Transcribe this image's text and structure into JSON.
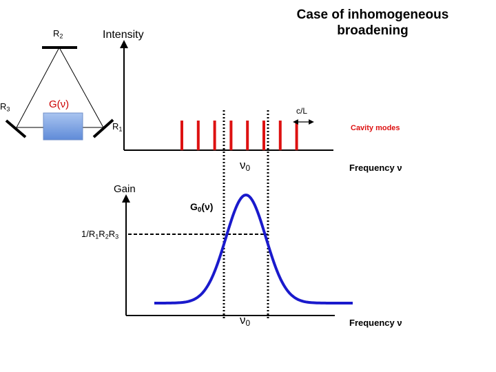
{
  "title": {
    "line1": "Case of inhomogeneous",
    "line2": "broadening"
  },
  "cavity": {
    "mirror_top": "R",
    "mirror_top_sub": "2",
    "mirror_left": "R",
    "mirror_left_sub": "3",
    "mirror_right": "R",
    "mirror_right_sub": "1",
    "gain_medium": "G(ν)",
    "medium_color": "#7fa6e4",
    "gain_label_color": "#cc0000"
  },
  "top_plot": {
    "ylabel": "Intensity",
    "xlabel": "Frequency ν",
    "center_label": "ν",
    "center_sub": "0",
    "spacing_label": "c/L",
    "modes_label": "Cavity modes",
    "mode_color": "#dd1111",
    "mode_count": 8
  },
  "bottom_plot": {
    "ylabel": "Gain",
    "xlabel": "Frequency ν",
    "center_label": "ν",
    "center_sub": "0",
    "curve_label_main": "G",
    "curve_label_sub": "0",
    "curve_label_tail": "(ν)",
    "threshold_label": "1/R",
    "threshold_sub1": "1",
    "threshold_mid1": "R",
    "threshold_sub2": "2",
    "threshold_mid2": "R",
    "threshold_sub3": "3",
    "curve_color": "#1a1acc"
  }
}
